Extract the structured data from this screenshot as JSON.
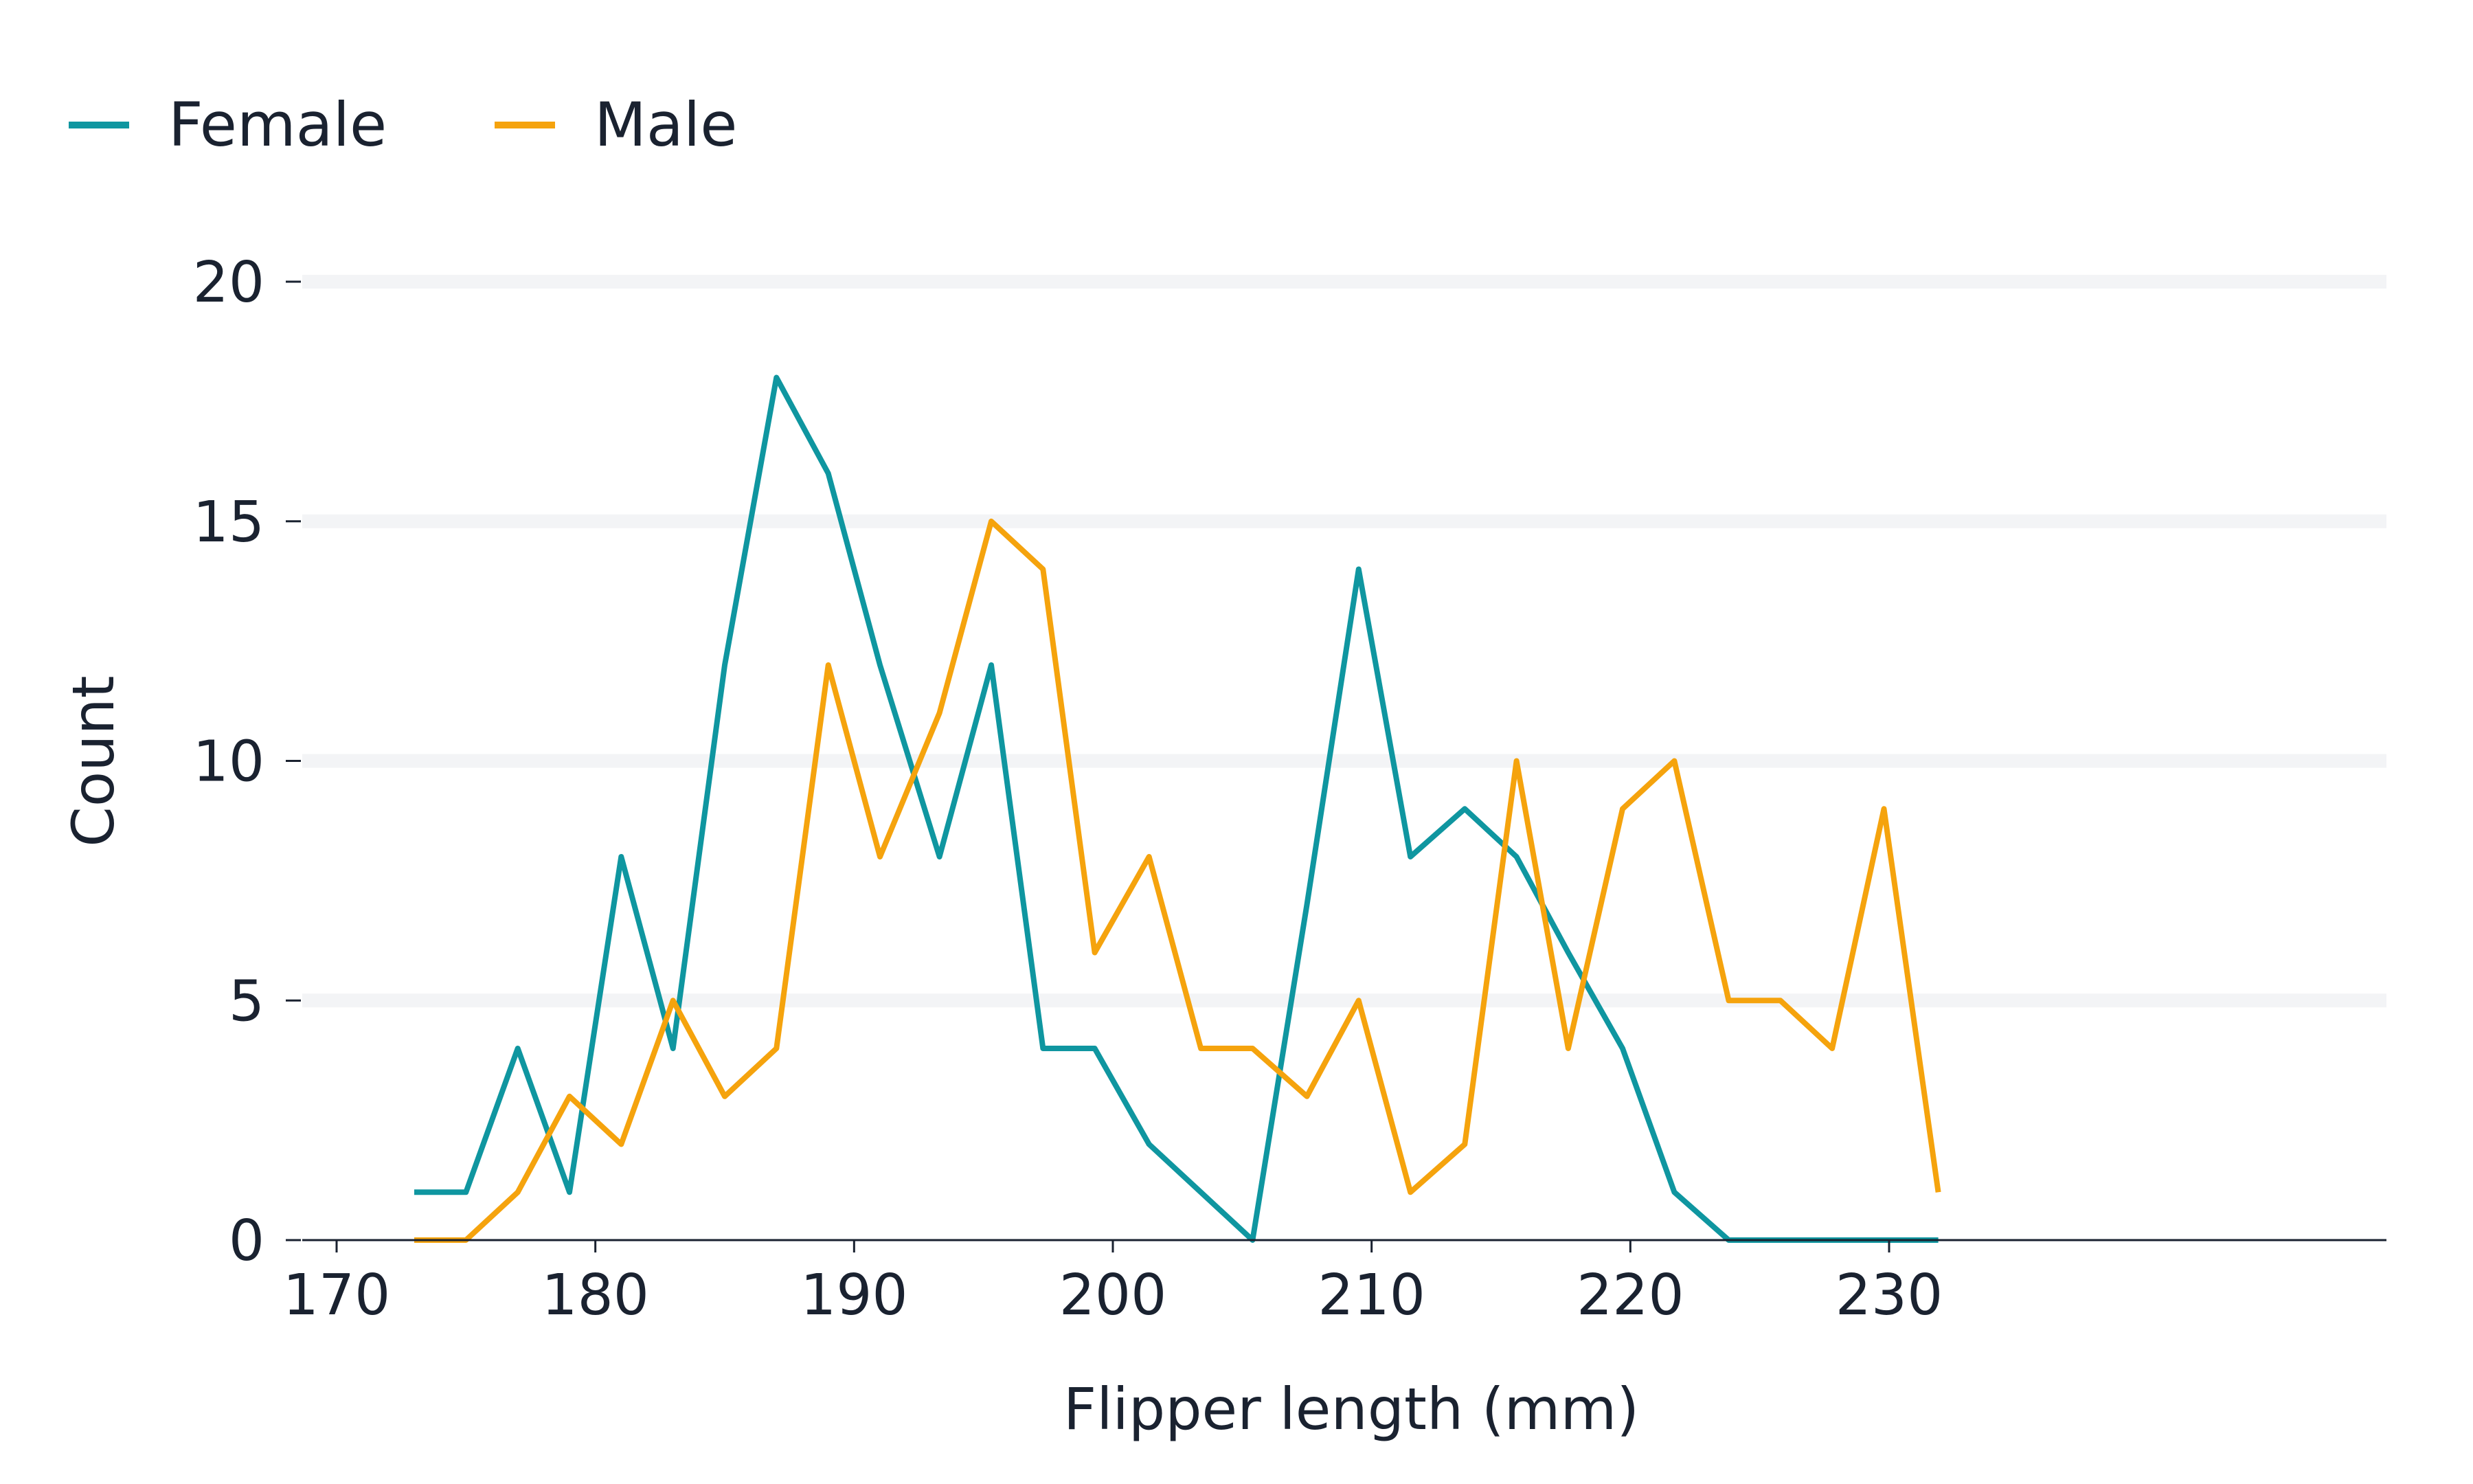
{
  "chart_data": {
    "type": "line",
    "title": "",
    "xlabel": "Flipper length (mm)",
    "ylabel": "Count",
    "xlim": [
      165,
      236
    ],
    "ylim": [
      0,
      20
    ],
    "x_ticks": [
      170,
      180,
      190,
      200,
      210,
      220,
      230
    ],
    "y_ticks": [
      0,
      5,
      10,
      15,
      20
    ],
    "grid": "horizontal",
    "legend": {
      "placement": "top-left"
    },
    "x": [
      173,
      175,
      177,
      179,
      181,
      183,
      185,
      187,
      189,
      191,
      193.3,
      195.3,
      197.3,
      199.3,
      201.4,
      203.4,
      205.4,
      207.5,
      209.5,
      211.5,
      213.6,
      215.6,
      217.6,
      219.7,
      221.7,
      223.8,
      225.8,
      227.8,
      229.8,
      231.9
    ],
    "series": [
      {
        "name": "Female",
        "color": "#0f96a0",
        "values": [
          1,
          1,
          4,
          1,
          8,
          4,
          12,
          18,
          16,
          12,
          8,
          12,
          4,
          4,
          2,
          1,
          0,
          7,
          14,
          8,
          9,
          8,
          6,
          4,
          1,
          0,
          0,
          0,
          0,
          0
        ]
      },
      {
        "name": "Male",
        "color": "#f5a30d",
        "values": [
          0,
          0,
          1,
          3,
          2,
          5,
          3,
          4,
          12,
          8,
          11,
          15,
          14,
          6,
          8,
          4,
          4,
          3,
          5,
          1,
          2,
          10,
          4,
          9,
          10,
          5,
          5,
          4,
          9,
          1
        ]
      }
    ]
  }
}
